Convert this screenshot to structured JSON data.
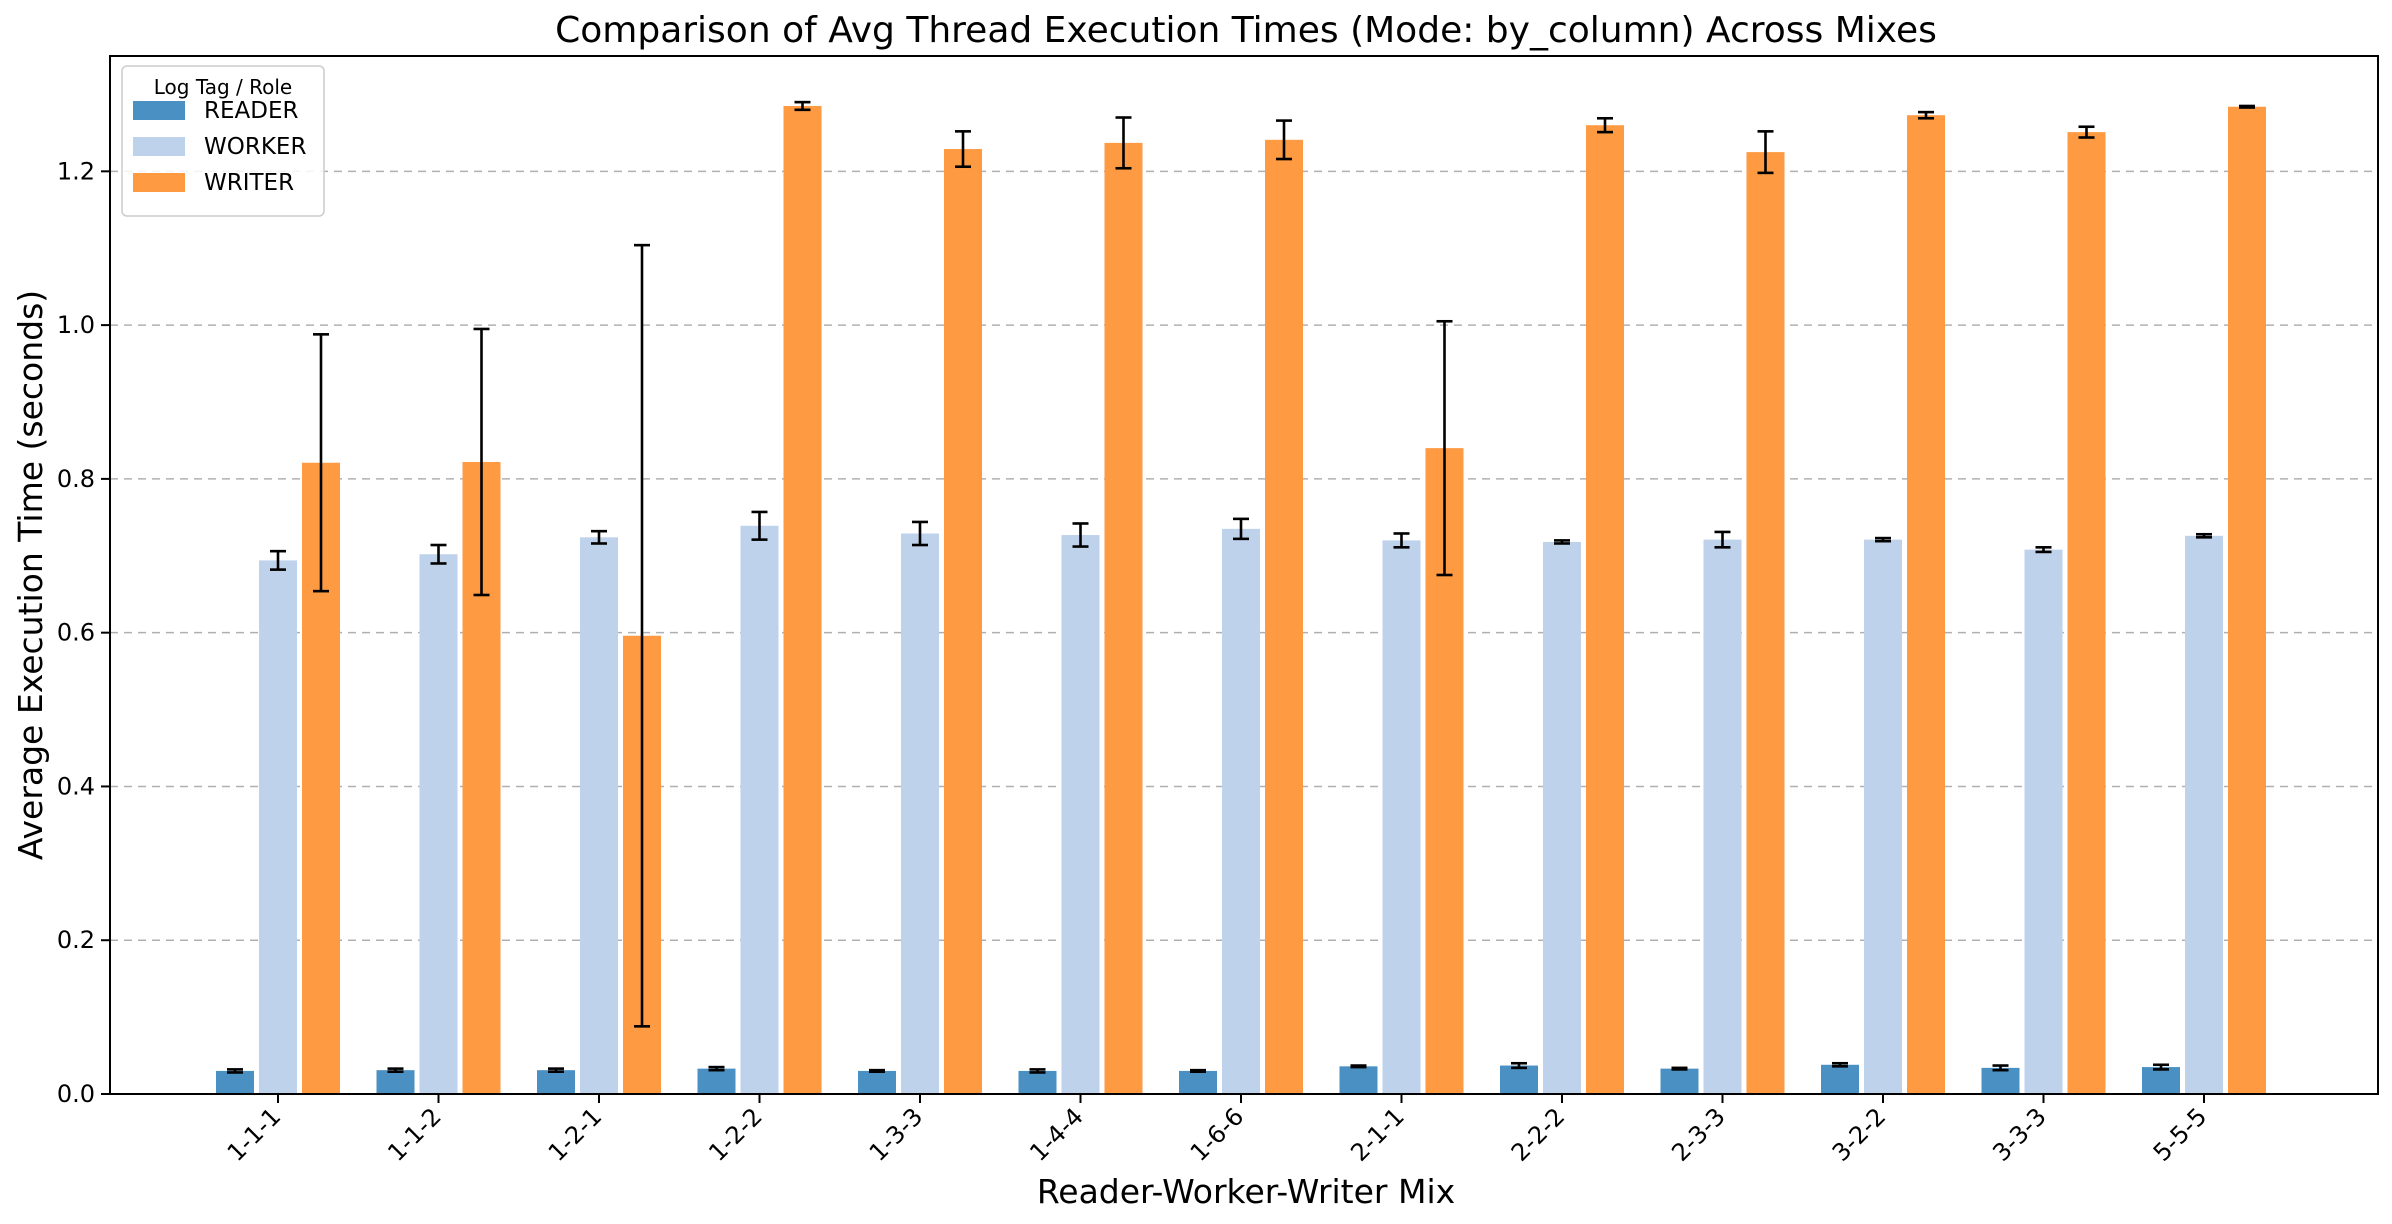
{
  "chart_data": {
    "type": "bar",
    "title": "Comparison of Avg Thread Execution Times (Mode: by_column) Across Mixes",
    "xlabel": "Reader-Worker-Writer Mix",
    "ylabel": "Average Execution Time (seconds)",
    "ylim": [
      0,
      1.35
    ],
    "yticks": [
      "0.0",
      "0.2",
      "0.4",
      "0.6",
      "0.8",
      "1.0",
      "1.2"
    ],
    "grid": "y-dashed",
    "legend": {
      "title": "Log Tag / Role",
      "position": "top-left"
    },
    "categories": [
      "1-1-1",
      "1-1-2",
      "1-2-1",
      "1-2-2",
      "1-3-3",
      "1-4-4",
      "1-6-6",
      "2-1-1",
      "2-2-2",
      "2-3-3",
      "3-2-2",
      "3-3-3",
      "5-5-5"
    ],
    "series": [
      {
        "name": "READER",
        "color": "#4a90c2",
        "values": [
          0.03,
          0.031,
          0.031,
          0.033,
          0.03,
          0.03,
          0.03,
          0.036,
          0.037,
          0.033,
          0.038,
          0.034,
          0.035
        ],
        "errors": [
          0.002,
          0.002,
          0.002,
          0.002,
          0.001,
          0.002,
          0.001,
          0.001,
          0.003,
          0.001,
          0.002,
          0.003,
          0.003
        ]
      },
      {
        "name": "WORKER",
        "color": "#bfd2ec",
        "values": [
          0.694,
          0.702,
          0.724,
          0.739,
          0.729,
          0.727,
          0.735,
          0.72,
          0.718,
          0.721,
          0.721,
          0.708,
          0.726
        ],
        "errors": [
          0.012,
          0.012,
          0.008,
          0.018,
          0.015,
          0.015,
          0.013,
          0.009,
          0.002,
          0.01,
          0.002,
          0.003,
          0.002
        ]
      },
      {
        "name": "WRITER",
        "color": "#fe9a42",
        "values": [
          0.821,
          0.822,
          0.596,
          1.285,
          1.229,
          1.237,
          1.241,
          0.84,
          1.26,
          1.225,
          1.273,
          1.251,
          1.284
        ],
        "errors": [
          0.167,
          0.173,
          0.508,
          0.005,
          0.023,
          0.033,
          0.025,
          0.165,
          0.009,
          0.027,
          0.004,
          0.007,
          0.001
        ]
      }
    ]
  }
}
